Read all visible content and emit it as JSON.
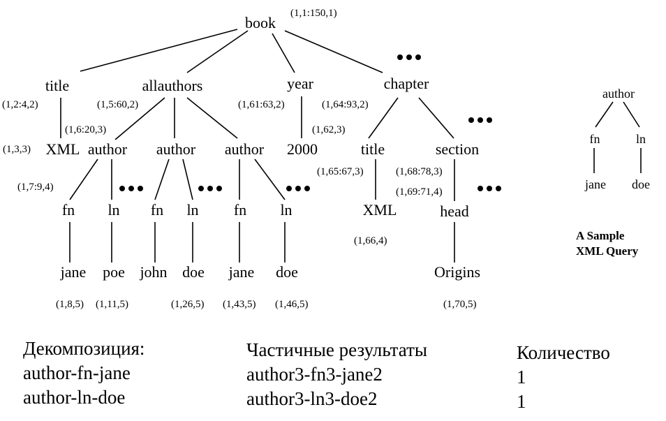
{
  "tree": {
    "nodes": {
      "book": "book",
      "title": "title",
      "allauthors": "allauthors",
      "year": "year",
      "chapter": "chapter",
      "xml1": "XML",
      "author1": "author",
      "author2": "author",
      "author3": "author",
      "y2000": "2000",
      "ctitle": "title",
      "section": "section",
      "fn1": "fn",
      "ln1": "ln",
      "fn2": "fn",
      "ln2": "ln",
      "fn3": "fn",
      "ln3": "ln",
      "xml2": "XML",
      "head": "head",
      "jane1": "jane",
      "poe": "poe",
      "john": "john",
      "doe1": "doe",
      "jane2": "jane",
      "doe2": "doe",
      "origins": "Origins"
    },
    "labels": {
      "book": "(1,1:150,1)",
      "title": "(1,2:4,2)",
      "allauthors": "(1,5:60,2)",
      "year": "(1,61:63,2)",
      "chapter": "(1,64:93,2)",
      "author1": "(1,6:20,3)",
      "xml1": "(1,3,3)",
      "y2000": "(1,62,3)",
      "ctitle": "(1,65:67,3)",
      "section": "(1,68:78,3)",
      "head": "(1,69:71,4)",
      "fn1": "(1,7:9,4)",
      "xml2": "(1,66,4)",
      "jane1": "(1,8,5)",
      "poe": "(1,11,5)",
      "doe1": "(1,26,5)",
      "jane2": "(1,43,5)",
      "doe2": "(1,46,5)",
      "origins": "(1,70,5)"
    }
  },
  "query": {
    "author": "author",
    "fn": "fn",
    "ln": "ln",
    "jane": "jane",
    "doe": "doe",
    "caption_line1": "A Sample",
    "caption_line2": "XML Query"
  },
  "decomposition": {
    "heading": "Декомпозиция:",
    "items": [
      "author-fn-jane",
      "author-ln-doe"
    ]
  },
  "partial_results": {
    "heading": "Частичные результаты",
    "items": [
      "author3-fn3-jane2",
      "author3-ln3-doe2"
    ]
  },
  "count": {
    "heading": "Количество",
    "items": [
      "1",
      "1"
    ]
  }
}
